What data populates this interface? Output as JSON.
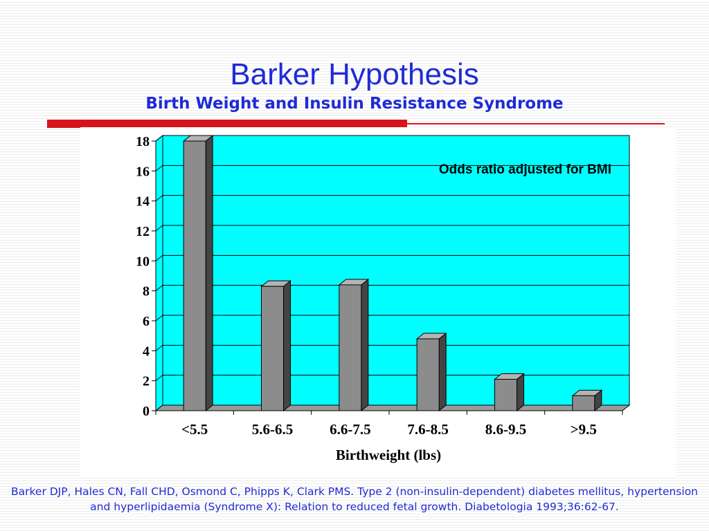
{
  "slide": {
    "title": "Barker Hypothesis",
    "subtitle": "Birth Weight and Insulin Resistance Syndrome",
    "citation": "Barker DJP, Hales CN, Fall CHD, Osmond C, Phipps K, Clark PMS. Type 2 (non-insulin-dependent) diabetes mellitus, hypertension and hyperlipidaemia (Syndrome X): Relation to reduced fetal growth. Diabetologia 1993;36:62-67."
  },
  "colors": {
    "title": "#1f2bd6",
    "accent": "#d7141b",
    "plot_background": "#00ffff",
    "bar_front": "#8c8c8c",
    "bar_side": "#444444",
    "bar_top": "#b4b4b4"
  },
  "chart_data": {
    "type": "bar",
    "style": "3d-column",
    "title": "",
    "annotation": "Odds ratio adjusted for BMI",
    "xlabel": "Birthweight (lbs)",
    "ylabel": "",
    "categories": [
      "<5.5",
      "5.6-6.5",
      "6.6-7.5",
      "7.6-8.5",
      "8.6-9.5",
      ">9.5"
    ],
    "values": [
      18.0,
      8.3,
      8.4,
      4.8,
      2.1,
      1.0
    ],
    "ylim": [
      0,
      18
    ],
    "yticks": [
      0,
      2,
      4,
      6,
      8,
      10,
      12,
      14,
      16,
      18
    ],
    "grid": true,
    "legend": "none"
  }
}
